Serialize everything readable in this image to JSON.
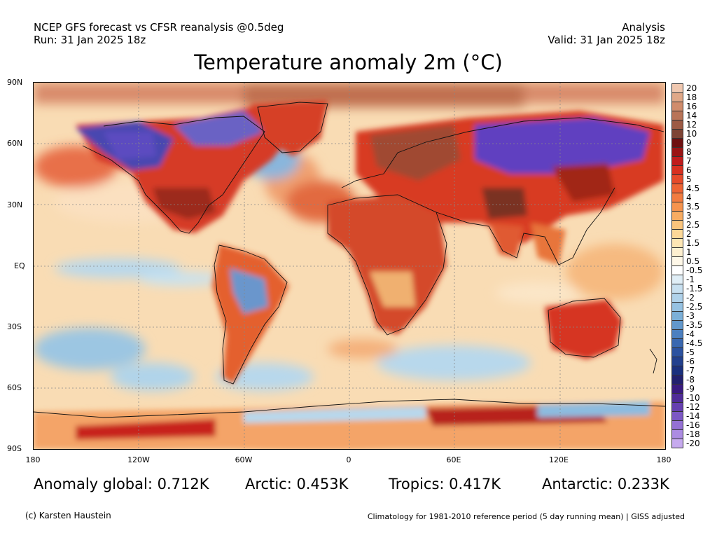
{
  "header": {
    "left_line1": "NCEP GFS forecast vs CFSR reanalysis @0.5deg",
    "left_line2": "Run: 31 Jan 2025 18z",
    "right_line1": "Analysis",
    "right_line2": "Valid: 31 Jan 2025 18z"
  },
  "title": "Temperature anomaly 2m (°C)",
  "lat_labels": [
    "90N",
    "60N",
    "30N",
    "EQ",
    "30S",
    "60S",
    "90S"
  ],
  "lon_labels": [
    "180",
    "120W",
    "60W",
    "0",
    "60E",
    "120E",
    "180"
  ],
  "colorbar": {
    "labels": [
      "20",
      "18",
      "16",
      "14",
      "12",
      "10",
      "9",
      "8",
      "7",
      "6",
      "5",
      "4.5",
      "4",
      "3.5",
      "3",
      "2.5",
      "2",
      "1.5",
      "1",
      "0.5",
      "-0.5",
      "-1",
      "-1.5",
      "-2",
      "-2.5",
      "-3",
      "-3.5",
      "-4",
      "-4.5",
      "-5",
      "-6",
      "-7",
      "-8",
      "-9",
      "-10",
      "-12",
      "-14",
      "-16",
      "-18",
      "-20"
    ],
    "colors": [
      "#f0c8b0",
      "#e0a888",
      "#d08c6c",
      "#b87458",
      "#9c5a44",
      "#7e4434",
      "#6e1010",
      "#9a1414",
      "#c01c1c",
      "#d83020",
      "#e64a2a",
      "#ee6434",
      "#f27c40",
      "#f6944e",
      "#f8ac62",
      "#fac47c",
      "#fcd898",
      "#fde6b4",
      "#fef0d0",
      "#fff8e8",
      "#ffffff",
      "#e0eef6",
      "#c8e0f0",
      "#b0d2ea",
      "#96c2e2",
      "#7cb0d8",
      "#6298cc",
      "#4c80c0",
      "#3a68b0",
      "#2c52a0",
      "#22408e",
      "#1a307e",
      "#22206e",
      "#3a1a80",
      "#502c98",
      "#6640b0",
      "#7c58c4",
      "#9470d4",
      "#ac8ce2",
      "#c6aaee"
    ]
  },
  "stats": {
    "global": "Anomaly global: 0.712K",
    "arctic": "Arctic: 0.453K",
    "tropics": "Tropics: 0.417K",
    "antarctic": "Antarctic: 0.233K"
  },
  "footer": {
    "left": "(c) Karsten Haustein",
    "right": "Climatology for 1981-2010 reference period (5 day running mean) | GISS adjusted"
  }
}
